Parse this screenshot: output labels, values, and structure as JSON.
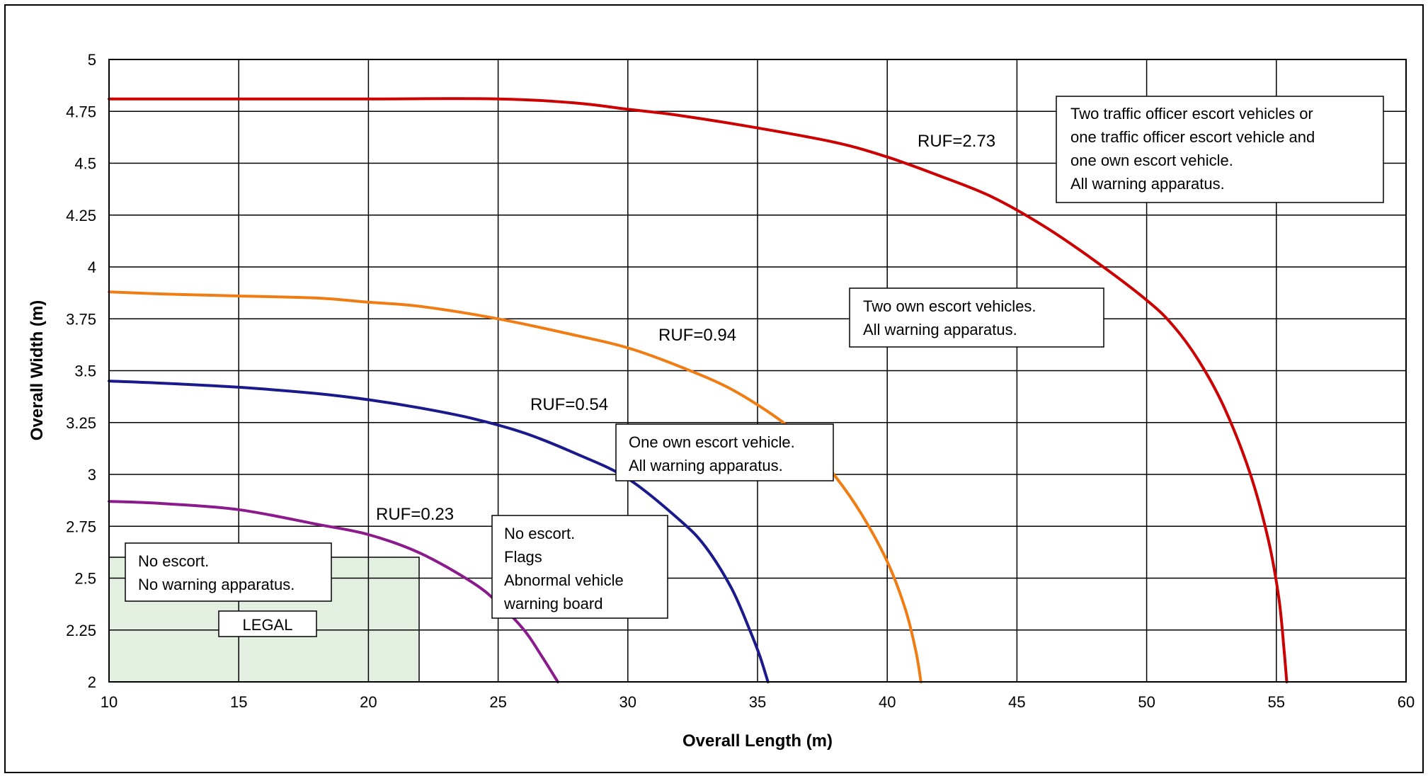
{
  "chart_data": {
    "type": "line",
    "xlabel": "Overall Length (m)",
    "ylabel": "Overall Width (m)",
    "xlim": [
      10,
      60
    ],
    "ylim": [
      2,
      5
    ],
    "xticks": [
      "10",
      "15",
      "20",
      "25",
      "30",
      "35",
      "40",
      "45",
      "50",
      "55",
      "60"
    ],
    "yticks": [
      "2",
      "2.25",
      "2.5",
      "2.75",
      "3",
      "3.25",
      "3.5",
      "3.75",
      "4",
      "4.25",
      "4.5",
      "4.75",
      "5"
    ],
    "grid": true,
    "legal_region": {
      "label": "LEGAL",
      "x": [
        10,
        22
      ],
      "y": [
        2,
        2.6
      ],
      "color": "#e3f0e1"
    },
    "series": [
      {
        "label": "RUF=0.23",
        "color": "#8b1a8c",
        "points": [
          [
            10,
            2.87
          ],
          [
            12,
            2.86
          ],
          [
            15,
            2.83
          ],
          [
            18,
            2.76
          ],
          [
            20,
            2.71
          ],
          [
            22,
            2.62
          ],
          [
            24,
            2.48
          ],
          [
            25,
            2.38
          ],
          [
            26,
            2.25
          ],
          [
            26.7,
            2.12
          ],
          [
            27.3,
            2.0
          ]
        ]
      },
      {
        "label": "RUF=0.54",
        "color": "#1a1a8c",
        "points": [
          [
            10,
            3.45
          ],
          [
            12,
            3.44
          ],
          [
            15,
            3.42
          ],
          [
            18,
            3.39
          ],
          [
            20,
            3.36
          ],
          [
            22,
            3.32
          ],
          [
            24,
            3.27
          ],
          [
            26,
            3.2
          ],
          [
            28,
            3.1
          ],
          [
            30,
            2.98
          ],
          [
            32,
            2.78
          ],
          [
            33,
            2.65
          ],
          [
            34,
            2.45
          ],
          [
            34.7,
            2.25
          ],
          [
            35.1,
            2.12
          ],
          [
            35.4,
            2.0
          ]
        ]
      },
      {
        "label": "RUF=0.94",
        "color": "#f07d14",
        "points": [
          [
            10,
            3.88
          ],
          [
            12,
            3.87
          ],
          [
            15,
            3.86
          ],
          [
            18,
            3.85
          ],
          [
            20,
            3.83
          ],
          [
            22,
            3.81
          ],
          [
            25,
            3.75
          ],
          [
            28,
            3.67
          ],
          [
            30,
            3.61
          ],
          [
            32,
            3.52
          ],
          [
            34,
            3.41
          ],
          [
            36,
            3.25
          ],
          [
            37,
            3.13
          ],
          [
            38,
            2.99
          ],
          [
            39,
            2.81
          ],
          [
            40,
            2.58
          ],
          [
            40.7,
            2.35
          ],
          [
            41.1,
            2.15
          ],
          [
            41.3,
            2.0
          ]
        ]
      },
      {
        "label": "RUF=2.73",
        "color": "#cc0000",
        "points": [
          [
            10,
            4.81
          ],
          [
            15,
            4.81
          ],
          [
            20,
            4.81
          ],
          [
            25,
            4.81
          ],
          [
            28,
            4.79
          ],
          [
            30,
            4.76
          ],
          [
            32,
            4.73
          ],
          [
            35,
            4.67
          ],
          [
            38,
            4.6
          ],
          [
            40,
            4.53
          ],
          [
            42,
            4.44
          ],
          [
            44,
            4.34
          ],
          [
            46,
            4.2
          ],
          [
            48,
            4.03
          ],
          [
            50,
            3.84
          ],
          [
            51,
            3.72
          ],
          [
            52,
            3.55
          ],
          [
            53,
            3.32
          ],
          [
            54,
            3.0
          ],
          [
            54.7,
            2.68
          ],
          [
            55.1,
            2.4
          ],
          [
            55.3,
            2.15
          ],
          [
            55.4,
            2.0
          ]
        ]
      }
    ],
    "annotations": [
      {
        "lines": [
          "Two traffic officer escort vehicles or",
          "one traffic officer escort vehicle and",
          "one own escort vehicle.",
          "All warning apparatus."
        ]
      },
      {
        "lines": [
          "Two own escort vehicles.",
          "All warning apparatus."
        ]
      },
      {
        "lines": [
          "One own escort vehicle.",
          "All warning apparatus."
        ]
      },
      {
        "lines": [
          "No escort.",
          "Flags",
          "Abnormal vehicle",
          "warning board"
        ]
      },
      {
        "lines": [
          "No escort.",
          "No warning apparatus."
        ]
      }
    ]
  }
}
